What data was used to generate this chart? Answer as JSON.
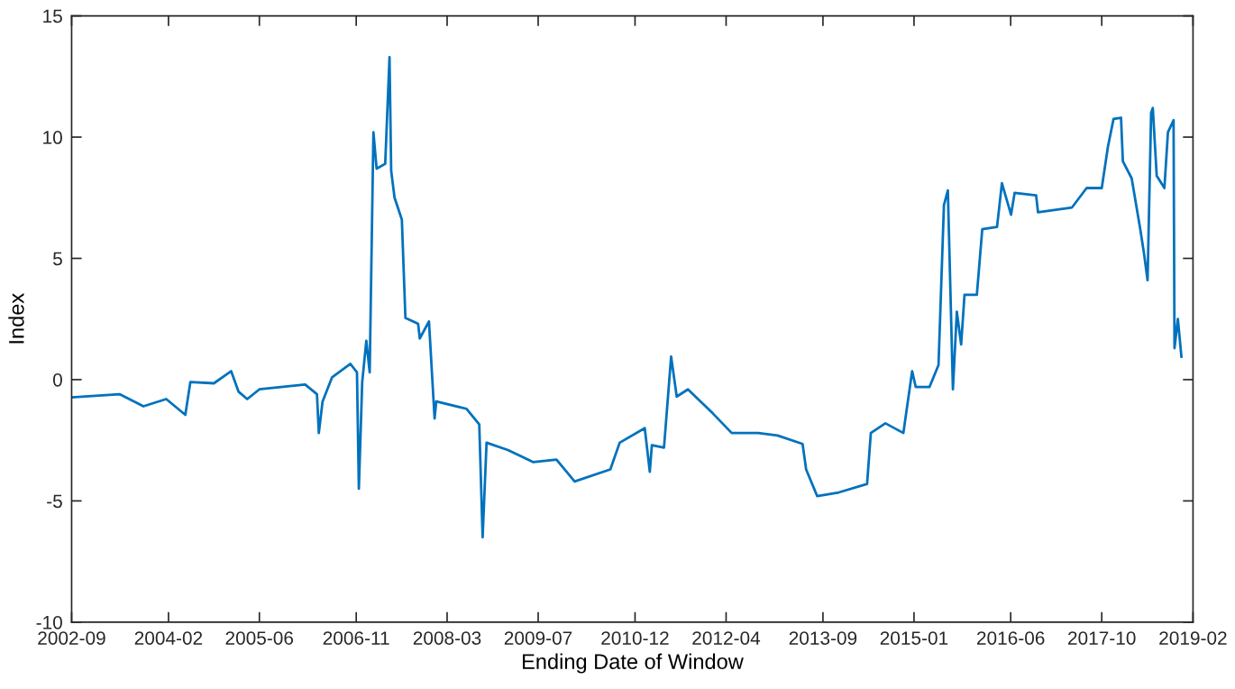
{
  "chart_data": {
    "type": "line",
    "xlabel": "Ending Date of Window",
    "ylabel": "Index",
    "x": [
      "2002-09-01",
      "2003-05-15",
      "2003-09-20",
      "2004-01-20",
      "2004-05-01",
      "2004-05-28",
      "2004-10-01",
      "2005-01-01",
      "2005-02-10",
      "2005-03-28",
      "2005-06-01",
      "2006-02-01",
      "2006-04-05",
      "2006-04-15",
      "2006-05-05",
      "2006-06-25",
      "2006-10-01",
      "2006-11-05",
      "2006-11-15",
      "2006-12-03",
      "2006-12-25",
      "2007-01-12",
      "2007-02-01",
      "2007-02-18",
      "2007-04-05",
      "2007-04-28",
      "2007-05-07",
      "2007-05-25",
      "2007-07-03",
      "2007-07-22",
      "2007-09-28",
      "2007-10-07",
      "2007-11-25",
      "2007-12-25",
      "2008-01-03",
      "2008-06-12",
      "2008-08-20",
      "2008-09-07",
      "2008-09-28",
      "2009-01-20",
      "2009-06-05",
      "2009-10-07",
      "2010-01-12",
      "2010-07-22",
      "2010-09-10",
      "2011-01-22",
      "2011-02-18",
      "2011-03-01",
      "2011-05-05",
      "2011-06-12",
      "2011-07-12",
      "2011-09-10",
      "2012-01-22",
      "2012-05-01",
      "2012-09-20",
      "2013-01-01",
      "2013-05-15",
      "2013-06-03",
      "2013-08-01",
      "2013-11-25",
      "2014-04-25",
      "2014-05-15",
      "2014-08-01",
      "2014-11-05",
      "2014-12-22",
      "2015-01-10",
      "2015-03-25",
      "2015-05-12",
      "2015-06-10",
      "2015-07-01",
      "2015-07-28",
      "2015-08-18",
      "2015-09-10",
      "2015-09-28",
      "2015-12-03",
      "2016-01-01",
      "2016-03-20",
      "2016-04-15",
      "2016-06-03",
      "2016-06-22",
      "2016-10-15",
      "2016-10-25",
      "2017-04-25",
      "2017-07-12",
      "2017-10-01",
      "2017-11-03",
      "2017-12-03",
      "2018-01-12",
      "2018-01-22",
      "2018-03-10",
      "2018-04-25",
      "2018-05-15",
      "2018-06-03",
      "2018-06-22",
      "2018-07-01",
      "2018-07-22",
      "2018-09-01",
      "2018-09-20",
      "2018-10-20",
      "2018-10-25",
      "2018-11-12",
      "2018-12-01"
    ],
    "series": [
      {
        "color": "#0072bd",
        "values": [
          -0.73,
          -0.6,
          -1.1,
          -0.8,
          -1.45,
          -0.1,
          -0.15,
          0.35,
          -0.5,
          -0.8,
          -0.4,
          -0.2,
          -0.6,
          -2.2,
          -0.9,
          0.1,
          0.65,
          0.3,
          -4.5,
          -0.1,
          1.6,
          0.3,
          10.2,
          8.7,
          8.9,
          13.3,
          8.6,
          7.5,
          6.6,
          2.55,
          2.3,
          1.7,
          2.4,
          -1.6,
          -0.9,
          -1.2,
          -1.85,
          -6.5,
          -2.6,
          -2.9,
          -3.4,
          -3.3,
          -4.2,
          -3.7,
          -2.6,
          -2.0,
          -3.8,
          -2.7,
          -2.8,
          0.95,
          -0.7,
          -0.4,
          -1.4,
          -2.2,
          -2.2,
          -2.3,
          -2.65,
          -3.7,
          -4.8,
          -4.65,
          -4.3,
          -2.2,
          -1.8,
          -2.2,
          0.35,
          -0.3,
          -0.3,
          0.6,
          7.2,
          7.8,
          -0.4,
          2.8,
          1.45,
          3.5,
          3.5,
          6.2,
          6.3,
          8.1,
          6.8,
          7.7,
          7.6,
          6.9,
          7.1,
          7.9,
          7.9,
          9.6,
          10.75,
          10.8,
          9.0,
          8.3,
          6.2,
          5.2,
          4.1,
          11.0,
          11.2,
          8.4,
          7.9,
          10.2,
          10.7,
          1.3,
          2.5,
          0.95
        ]
      }
    ],
    "xlim": [
      "2002-09",
      "2019-02"
    ],
    "xticks": [
      "2002-09",
      "2004-02",
      "2005-06",
      "2006-11",
      "2008-03",
      "2009-07",
      "2010-12",
      "2012-04",
      "2013-09",
      "2015-01",
      "2016-06",
      "2017-10",
      "2019-02"
    ],
    "ylim": [
      -10,
      15
    ],
    "yticks": [
      -10,
      -5,
      0,
      5,
      10,
      15
    ],
    "grid": false,
    "legend": false,
    "marker": "none",
    "line_style": "solid"
  }
}
